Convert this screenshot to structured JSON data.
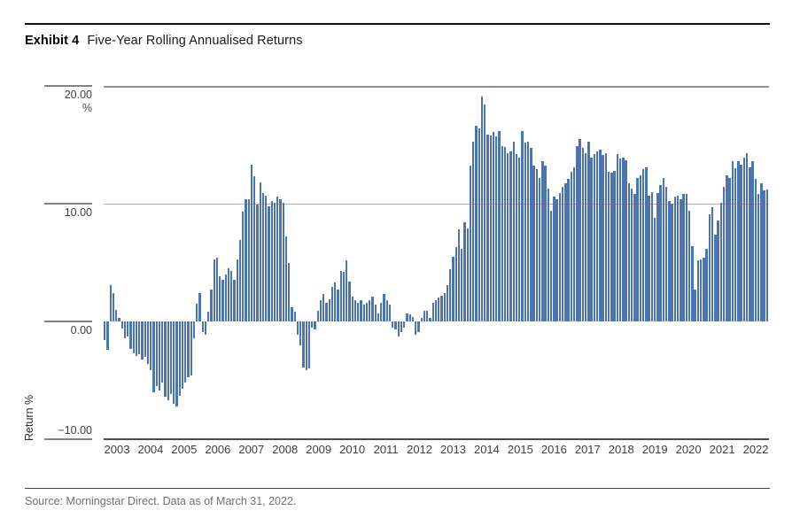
{
  "header": {
    "exhibit_label": "Exhibit 4",
    "title": "Five-Year Rolling Annualised Returns"
  },
  "footer": {
    "source": "Source: Morningstar Direct. Data as of March 31, 2022."
  },
  "colors": {
    "bar": "#4d74b2",
    "axis_dark": "#4a4a4a",
    "gridline": "#8f8f8f",
    "tick": "#828282",
    "source_text": "#6f6f6f",
    "title_text": "#1a1a1a"
  },
  "chart_data": {
    "type": "bar",
    "title": "Five-Year Rolling Annualised Returns",
    "xlabel": "",
    "ylabel": "Return %",
    "y_unit_label": "%",
    "ylim": [
      -10,
      20
    ],
    "yticks": [
      20,
      10,
      0,
      -10
    ],
    "ytick_labels": [
      "20.00",
      "10.00",
      "0.00",
      "−10.00"
    ],
    "gridlines_at": [
      20,
      10
    ],
    "legend": "none",
    "x_start": "2003-01",
    "x_end": "2022-03",
    "x_year_labels": [
      "2003",
      "2004",
      "2005",
      "2006",
      "2007",
      "2008",
      "2009",
      "2010",
      "2011",
      "2012",
      "2013",
      "2014",
      "2015",
      "2016",
      "2017",
      "2018",
      "2019",
      "2020",
      "2021",
      "2022"
    ],
    "values": [
      -1.6,
      -2.4,
      3.1,
      2.4,
      1.0,
      0.3,
      -0.6,
      -1.4,
      -1.3,
      -2.3,
      -2.7,
      -2.9,
      -2.8,
      -3.2,
      -3.0,
      -3.6,
      -4.1,
      -6.0,
      -5.5,
      -5.9,
      -5.2,
      -6.4,
      -6.7,
      -6.2,
      -7.0,
      -7.2,
      -6.3,
      -5.7,
      -5.2,
      -4.7,
      -4.6,
      -1.4,
      1.5,
      2.4,
      -0.9,
      -1.1,
      0.8,
      2.7,
      5.3,
      5.4,
      3.8,
      3.5,
      4.0,
      4.5,
      4.3,
      3.5,
      5.3,
      6.9,
      9.3,
      10.4,
      10.4,
      13.3,
      12.3,
      9.9,
      11.8,
      10.9,
      10.7,
      9.8,
      10.2,
      10.1,
      10.6,
      10.4,
      10.1,
      7.2,
      5.0,
      1.2,
      0.8,
      -1.1,
      -2.0,
      -3.9,
      -4.1,
      -4.0,
      -0.5,
      -0.7,
      0.9,
      1.8,
      2.3,
      1.6,
      1.9,
      2.9,
      3.3,
      2.7,
      4.3,
      4.2,
      5.2,
      3.4,
      2.1,
      1.8,
      1.6,
      1.8,
      1.4,
      1.6,
      1.8,
      2.1,
      1.4,
      0.7,
      1.6,
      2.3,
      1.8,
      1.4,
      -0.5,
      -0.7,
      -1.3,
      -0.9,
      -0.5,
      0.7,
      0.6,
      0.4,
      -1.1,
      -0.9,
      0.3,
      0.9,
      0.9,
      0.3,
      1.6,
      1.8,
      2.0,
      2.2,
      2.4,
      3.1,
      4.4,
      5.5,
      6.3,
      7.8,
      6.2,
      8.4,
      7.9,
      13.2,
      15.3,
      16.6,
      16.4,
      19.1,
      18.4,
      15.9,
      15.8,
      16.1,
      15.7,
      16.2,
      14.9,
      14.8,
      14.3,
      14.4,
      15.3,
      14.2,
      13.9,
      16.2,
      15.2,
      15.3,
      14.7,
      13.2,
      12.9,
      12.2,
      13.6,
      13.2,
      11.3,
      9.4,
      10.6,
      10.4,
      10.9,
      11.4,
      11.7,
      12.1,
      12.7,
      13.1,
      14.9,
      15.5,
      14.7,
      14.3,
      15.3,
      13.9,
      14.2,
      14.4,
      14.6,
      14.1,
      14.3,
      12.7,
      12.6,
      12.8,
      14.2,
      13.8,
      13.9,
      13.7,
      11.7,
      11.3,
      10.8,
      12.2,
      12.4,
      12.9,
      13.1,
      10.7,
      11.0,
      8.8,
      10.9,
      11.6,
      12.2,
      11.4,
      10.2,
      10.0,
      10.6,
      10.7,
      10.4,
      10.8,
      10.8,
      9.4,
      6.4,
      2.7,
      5.2,
      5.3,
      5.4,
      6.2,
      9.1,
      9.7,
      7.4,
      8.6,
      10.1,
      11.4,
      12.4,
      12.2,
      13.6,
      13.0,
      13.6,
      13.3,
      13.9,
      14.3,
      13.1,
      13.6,
      12.1,
      10.8,
      11.7,
      11.1,
      11.2
    ]
  }
}
